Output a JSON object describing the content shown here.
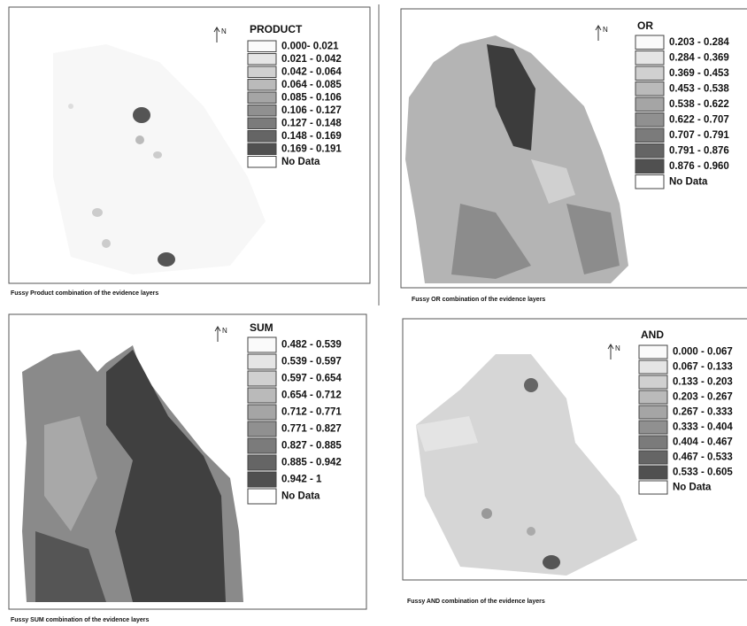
{
  "panels": [
    {
      "title": "PRODUCT",
      "north": "N",
      "no_data": "No Data",
      "legend": [
        "0.000- 0.021",
        "0.021 - 0.042",
        "0.042 - 0.064",
        "0.064 - 0.085",
        "0.085 - 0.106",
        "0.106 - 0.127",
        "0.127 - 0.148",
        "0.148 - 0.169",
        "0.169 - 0.191"
      ],
      "caption": "Fussy Product combination of the evidence layers"
    },
    {
      "title": "OR",
      "north": "N",
      "no_data": "No Data",
      "legend": [
        "0.203 - 0.284",
        "0.284 - 0.369",
        "0.369 - 0.453",
        "0.453 - 0.538",
        "0.538 - 0.622",
        "0.622 - 0.707",
        "0.707 - 0.791",
        "0.791 - 0.876",
        "0.876 - 0.960"
      ],
      "caption": "Fussy OR combination of the evidence layers"
    },
    {
      "title": "SUM",
      "north": "N",
      "no_data": "No Data",
      "legend": [
        "0.482 - 0.539",
        "0.539 - 0.597",
        "0.597 - 0.654",
        "0.654 - 0.712",
        "0.712 - 0.771",
        "0.771 - 0.827",
        "0.827 - 0.885",
        "0.885 - 0.942",
        "0.942 - 1"
      ],
      "caption": "Fussy SUM combination of the evidence layers"
    },
    {
      "title": "AND",
      "north": "N",
      "no_data": "No Data",
      "legend": [
        "0.000 - 0.067",
        "0.067 - 0.133",
        "0.133 - 0.203",
        "0.203 - 0.267",
        "0.267 - 0.333",
        "0.333 - 0.404",
        "0.404 - 0.467",
        "0.467 - 0.533",
        "0.533 - 0.605"
      ],
      "caption": "Fussy AND combination of the evidence layers"
    }
  ]
}
